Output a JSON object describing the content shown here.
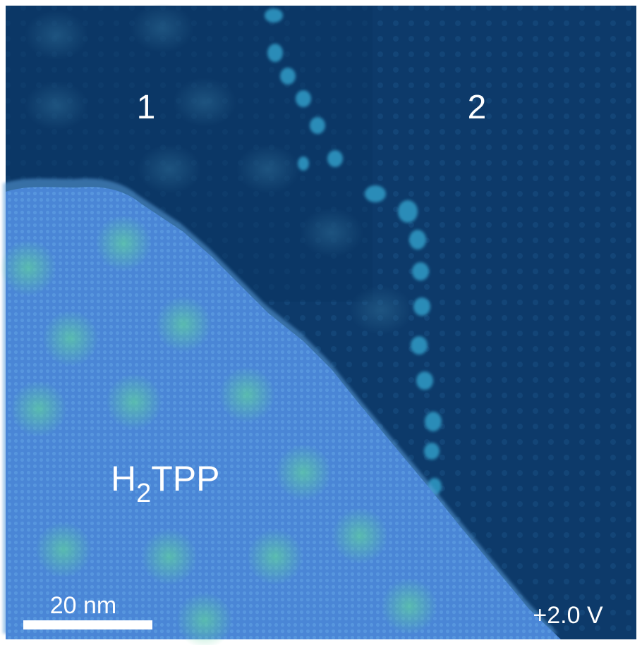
{
  "labels": {
    "region1": "1",
    "region2": "2",
    "molecule": {
      "prefix": "H",
      "subscript": "2",
      "suffix": "TPP"
    },
    "scale_bar": "20 nm",
    "bias": "+2.0 V"
  }
}
